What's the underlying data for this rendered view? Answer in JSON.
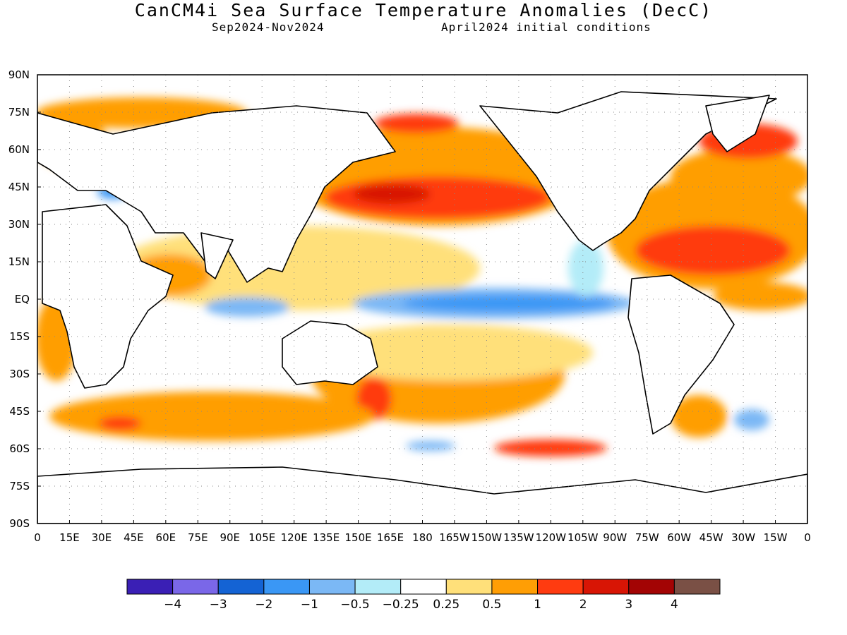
{
  "header": {
    "title": "CanCM4i Sea Surface Temperature Anomalies (DecC)",
    "period": "Sep2024-Nov2024",
    "initial": "April2024 initial conditions"
  },
  "axes": {
    "lat_labels": [
      "90N",
      "75N",
      "60N",
      "45N",
      "30N",
      "15N",
      "EQ",
      "15S",
      "30S",
      "45S",
      "60S",
      "75S",
      "90S"
    ],
    "lon_labels": [
      "0",
      "15E",
      "30E",
      "45E",
      "60E",
      "75E",
      "90E",
      "105E",
      "120E",
      "135E",
      "150E",
      "165E",
      "180",
      "165W",
      "150W",
      "135W",
      "120W",
      "105W",
      "90W",
      "75W",
      "60W",
      "45W",
      "30W",
      "15W",
      "0"
    ]
  },
  "colorbar": {
    "colors": [
      "#3a1fb5",
      "#7a67e8",
      "#1463d4",
      "#3a97f5",
      "#7bb8f5",
      "#b3ecf8",
      "#ffffff",
      "#ffe07a",
      "#ff9e05",
      "#ff3b10",
      "#d81505",
      "#a30404",
      "#7a5045"
    ],
    "labels": [
      "−4",
      "−3",
      "−2",
      "−1",
      "−0.5",
      "−0.25",
      "0.25",
      "0.5",
      "1",
      "2",
      "3",
      "4"
    ]
  },
  "land_color": "#ffffff",
  "coast_color": "#000000"
}
